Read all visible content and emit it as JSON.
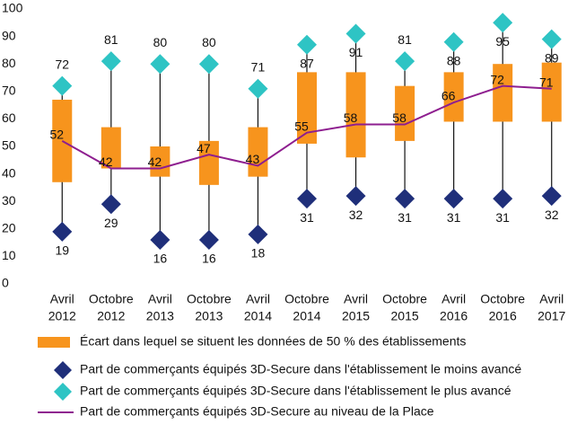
{
  "chart_data": {
    "type": "combo",
    "categories": [
      [
        "Avril",
        "2012"
      ],
      [
        "Octobre",
        "2012"
      ],
      [
        "Avril",
        "2013"
      ],
      [
        "Octobre",
        "2013"
      ],
      [
        "Avril",
        "2014"
      ],
      [
        "Octobre",
        "2014"
      ],
      [
        "Avril",
        "2015"
      ],
      [
        "Octobre",
        "2015"
      ],
      [
        "Avril",
        "2016"
      ],
      [
        "Octobre",
        "2016"
      ],
      [
        "Avril",
        "2017"
      ]
    ],
    "ylim": [
      0,
      100
    ],
    "yticks": [
      0,
      10,
      20,
      30,
      40,
      50,
      60,
      70,
      80,
      90,
      100
    ],
    "series": [
      {
        "name": "Écart dans lequel se situent les données de 50 % des établissements",
        "type": "range",
        "color": "#f7941d",
        "low": [
          37,
          42,
          39,
          36,
          39,
          51,
          46,
          52,
          59,
          59,
          59
        ],
        "high": [
          67,
          57,
          50,
          52,
          57,
          77,
          77,
          72,
          77,
          80,
          80.5
        ]
      },
      {
        "name": "Part de commerçants équipés 3D-Secure dans l'établissement le moins avancé",
        "type": "diamond",
        "color": "#1f2f7a",
        "values": [
          19,
          29,
          16,
          16,
          18,
          31,
          32,
          31,
          31,
          31,
          32
        ]
      },
      {
        "name": "Part de commerçants équipés 3D-Secure dans l'établissement le plus avancé",
        "type": "diamond",
        "color": "#2ec4c4",
        "values": [
          72,
          81,
          80,
          80,
          71,
          87,
          91,
          81,
          88,
          95,
          89
        ]
      },
      {
        "name": "Part de commerçants équipés 3D-Secure au niveau de la Place",
        "type": "line",
        "color": "#8e1e8f",
        "values": [
          52,
          42,
          42,
          47,
          43,
          55,
          58,
          58,
          66,
          72,
          71
        ]
      }
    ]
  }
}
